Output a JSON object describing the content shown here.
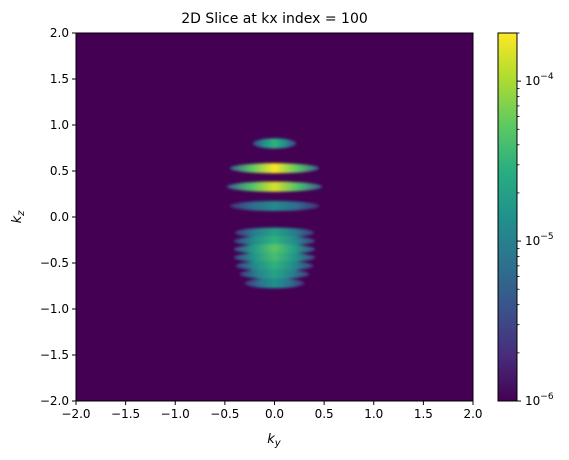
{
  "chart_data": {
    "type": "heatmap",
    "title": "2D Slice at kx index = 100",
    "xlabel": "k",
    "xlabel_sub": "y",
    "ylabel": "k",
    "ylabel_sub": "z",
    "xlim": [
      -2.0,
      2.0
    ],
    "ylim": [
      -2.0,
      2.0
    ],
    "x_ticks": [
      -2.0,
      -1.5,
      -1.0,
      -0.5,
      0.0,
      0.5,
      1.0,
      1.5,
      2.0
    ],
    "x_tick_labels": [
      "−2.0",
      "−1.5",
      "−1.0",
      "−0.5",
      "0.0",
      "0.5",
      "1.0",
      "1.5",
      "2.0"
    ],
    "y_ticks": [
      -2.0,
      -1.5,
      -1.0,
      -0.5,
      0.0,
      0.5,
      1.0,
      1.5,
      2.0
    ],
    "y_tick_labels": [
      "−2.0",
      "−1.5",
      "−1.0",
      "−0.5",
      "0.0",
      "0.5",
      "1.0",
      "1.5",
      "2.0"
    ],
    "colorbar": {
      "scale": "log",
      "range": [
        1e-06,
        0.0002
      ],
      "colormap": "viridis",
      "ticks": [
        {
          "value": 1e-06,
          "base": "10",
          "exp": "−6"
        },
        {
          "value": 1e-05,
          "base": "10",
          "exp": "−5"
        },
        {
          "value": 0.0001,
          "base": "10",
          "exp": "−4"
        }
      ]
    },
    "background_value": 1e-06,
    "bands": [
      {
        "kz": 0.8,
        "halfwidth": 0.22,
        "peak": 3e-05
      },
      {
        "kz": 0.53,
        "halfwidth": 0.45,
        "peak": 0.0002
      },
      {
        "kz": 0.33,
        "halfwidth": 0.48,
        "peak": 0.00015
      },
      {
        "kz": 0.12,
        "halfwidth": 0.45,
        "peak": 1.2e-05
      },
      {
        "kz": -0.17,
        "halfwidth": 0.4,
        "peak": 2e-05
      },
      {
        "kz": -0.26,
        "halfwidth": 0.41,
        "peak": 3e-05
      },
      {
        "kz": -0.35,
        "halfwidth": 0.41,
        "peak": 5e-05
      },
      {
        "kz": -0.44,
        "halfwidth": 0.41,
        "peak": 4e-05
      },
      {
        "kz": -0.53,
        "halfwidth": 0.39,
        "peak": 3e-05
      },
      {
        "kz": -0.62,
        "halfwidth": 0.35,
        "peak": 2.2e-05
      },
      {
        "kz": -0.72,
        "halfwidth": 0.3,
        "peak": 1.4e-05
      }
    ]
  }
}
